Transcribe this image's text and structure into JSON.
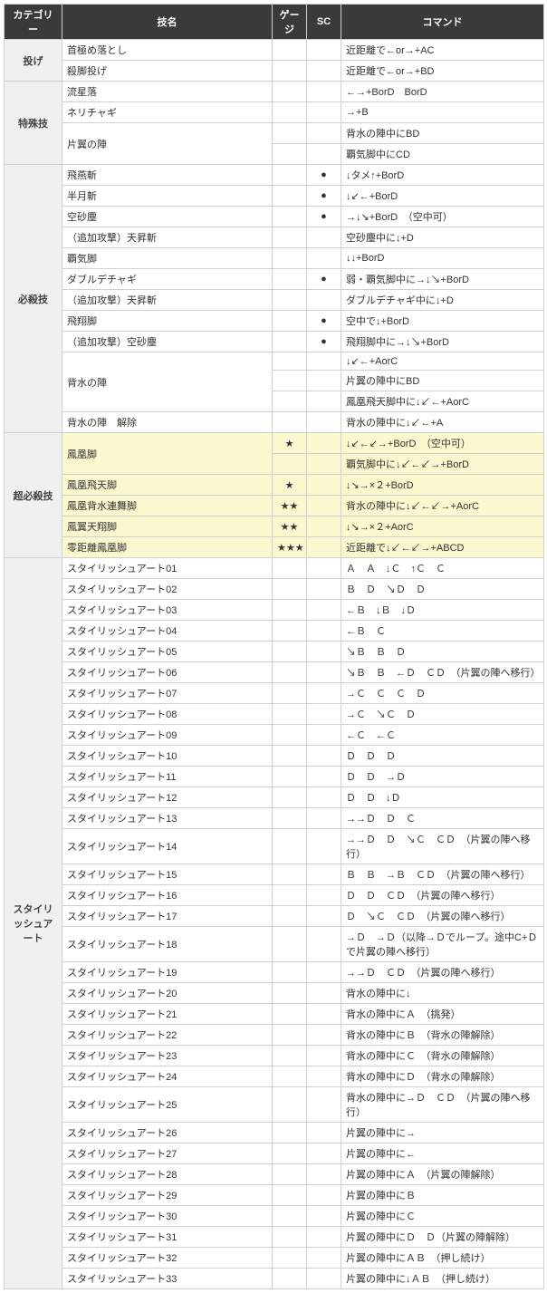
{
  "headers": {
    "category": "カテゴリー",
    "name": "技名",
    "gauge": "ゲージ",
    "sc": "SC",
    "command": "コマンド"
  },
  "rows": [
    {
      "cat": "投げ",
      "catSpan": 2,
      "name": "首極め落とし",
      "g": "",
      "s": "",
      "c": "近距離で←or→+AC"
    },
    {
      "name": "殺脚投げ",
      "g": "",
      "s": "",
      "c": "近距離で←or→+BD"
    },
    {
      "cat": "特殊技",
      "catSpan": 4,
      "name": "流星落",
      "g": "",
      "s": "",
      "c": "←→+BorD　BorD"
    },
    {
      "name": "ネリチャギ",
      "g": "",
      "s": "",
      "c": "→+B"
    },
    {
      "name": "片翼の陣",
      "rowSpan": 2,
      "g": "",
      "s": "",
      "c": "背水の陣中にBD"
    },
    {
      "g": "",
      "s": "",
      "c": "覇気脚中にCD"
    },
    {
      "cat": "必殺技",
      "catSpan": 13,
      "name": "飛燕斬",
      "g": "",
      "s": "●",
      "c": "↓タメ↑+BorD"
    },
    {
      "name": "半月斬",
      "g": "",
      "s": "●",
      "c": "↓↙←+BorD"
    },
    {
      "name": "空砂塵",
      "g": "",
      "s": "●",
      "c": "→↓↘+BorD　（空中可）"
    },
    {
      "name": "（追加攻撃）天昇斬",
      "g": "",
      "s": "",
      "c": "空砂塵中に↓+D"
    },
    {
      "name": "覇気脚",
      "g": "",
      "s": "",
      "c": "↓↓+BorD"
    },
    {
      "name": "ダブルデチャギ",
      "g": "",
      "s": "●",
      "c": "弱・覇気脚中に→↓↘+BorD"
    },
    {
      "name": "（追加攻撃）天昇斬",
      "g": "",
      "s": "",
      "c": "ダブルデチャギ中に↓+D"
    },
    {
      "name": "飛翔脚",
      "g": "",
      "s": "●",
      "c": "空中で↓+BorD"
    },
    {
      "name": "（追加攻撃）空砂塵",
      "g": "",
      "s": "●",
      "c": "飛翔脚中に→↓↘+BorD"
    },
    {
      "name": "背水の陣",
      "rowSpan": 3,
      "g": "",
      "s": "",
      "c": "↓↙←+AorC"
    },
    {
      "g": "",
      "s": "",
      "c": "片翼の陣中にBD"
    },
    {
      "g": "",
      "s": "",
      "c": "鳳凰飛天脚中に↓↙←+AorC"
    },
    {
      "name": "背水の陣　解除",
      "g": "",
      "s": "",
      "c": "背水の陣中に↓↙←+A"
    },
    {
      "cat": "超必殺技",
      "catSpan": 6,
      "hl": true,
      "name": "鳳凰脚",
      "rowSpan": 2,
      "g": "★",
      "s": "",
      "c": "↓↙←↙→+BorD　（空中可）"
    },
    {
      "hl": true,
      "g": "",
      "s": "",
      "c": "覇気脚中に↓↙←↙→+BorD"
    },
    {
      "hl": true,
      "name": "鳳凰飛天脚",
      "g": "★",
      "s": "",
      "c": "↓↘→×２+BorD"
    },
    {
      "hl": true,
      "name": "鳳凰背水連舞脚",
      "g": "★★",
      "s": "",
      "c": "背水の陣中に↓↙←↙→+AorC"
    },
    {
      "hl": true,
      "name": "鳳翼天翔脚",
      "g": "★★",
      "s": "",
      "c": "↓↘→×２+AorC"
    },
    {
      "hl": true,
      "name": "零距離鳳凰脚",
      "g": "★★★",
      "s": "",
      "c": "近距離で↓↙←↙→+ABCD"
    },
    {
      "cat": "スタイリッシュアート",
      "catSpan": 33,
      "name": "スタイリッシュアート01",
      "g": "",
      "s": "",
      "c": "Ａ　Ａ　↓Ｃ　↑Ｃ　Ｃ"
    },
    {
      "name": "スタイリッシュアート02",
      "g": "",
      "s": "",
      "c": "Ｂ　Ｄ　↘Ｄ　Ｄ"
    },
    {
      "name": "スタイリッシュアート03",
      "g": "",
      "s": "",
      "c": "←Ｂ　↓Ｂ　↓Ｄ"
    },
    {
      "name": "スタイリッシュアート04",
      "g": "",
      "s": "",
      "c": "←Ｂ　Ｃ"
    },
    {
      "name": "スタイリッシュアート05",
      "g": "",
      "s": "",
      "c": "↘Ｂ　Ｂ　Ｄ"
    },
    {
      "name": "スタイリッシュアート06",
      "g": "",
      "s": "",
      "c": "↘Ｂ　Ｂ　←Ｄ　ＣＤ　（片翼の陣へ移行）"
    },
    {
      "name": "スタイリッシュアート07",
      "g": "",
      "s": "",
      "c": "→Ｃ　Ｃ　Ｃ　Ｄ"
    },
    {
      "name": "スタイリッシュアート08",
      "g": "",
      "s": "",
      "c": "→Ｃ　↘Ｃ　Ｄ"
    },
    {
      "name": "スタイリッシュアート09",
      "g": "",
      "s": "",
      "c": "←Ｃ　←Ｃ"
    },
    {
      "name": "スタイリッシュアート10",
      "g": "",
      "s": "",
      "c": "Ｄ　Ｄ　Ｄ"
    },
    {
      "name": "スタイリッシュアート11",
      "g": "",
      "s": "",
      "c": "Ｄ　Ｄ　→Ｄ"
    },
    {
      "name": "スタイリッシュアート12",
      "g": "",
      "s": "",
      "c": "Ｄ　Ｄ　↓Ｄ"
    },
    {
      "name": "スタイリッシュアート13",
      "g": "",
      "s": "",
      "c": "→→Ｄ　Ｄ　Ｃ"
    },
    {
      "name": "スタイリッシュアート14",
      "g": "",
      "s": "",
      "c": "→→Ｄ　Ｄ　↘Ｃ　ＣＤ　（片翼の陣へ移行）"
    },
    {
      "name": "スタイリッシュアート15",
      "g": "",
      "s": "",
      "c": "Ｂ　Ｂ　→Ｂ　ＣＤ　（片翼の陣へ移行）"
    },
    {
      "name": "スタイリッシュアート16",
      "g": "",
      "s": "",
      "c": "Ｄ　Ｄ　ＣＤ　（片翼の陣へ移行）"
    },
    {
      "name": "スタイリッシュアート17",
      "g": "",
      "s": "",
      "c": "Ｄ　↘Ｃ　ＣＤ　（片翼の陣へ移行）"
    },
    {
      "name": "スタイリッシュアート18",
      "g": "",
      "s": "",
      "c": "→Ｄ　→Ｄ（以降→Ｄでループ。途中С+Ｄで片翼の陣へ移行）"
    },
    {
      "name": "スタイリッシュアート19",
      "g": "",
      "s": "",
      "c": "→→Ｄ　ＣＤ　（片翼の陣へ移行）"
    },
    {
      "name": "スタイリッシュアート20",
      "g": "",
      "s": "",
      "c": "背水の陣中に↓"
    },
    {
      "name": "スタイリッシュアート21",
      "g": "",
      "s": "",
      "c": "背水の陣中にＡ　（挑発）"
    },
    {
      "name": "スタイリッシュアート22",
      "g": "",
      "s": "",
      "c": "背水の陣中にＢ　（背水の陣解除）"
    },
    {
      "name": "スタイリッシュアート23",
      "g": "",
      "s": "",
      "c": "背水の陣中にＣ　（背水の陣解除）"
    },
    {
      "name": "スタイリッシュアート24",
      "g": "",
      "s": "",
      "c": "背水の陣中にＤ　（背水の陣解除）"
    },
    {
      "name": "スタイリッシュアート25",
      "g": "",
      "s": "",
      "c": "背水の陣中に→Ｄ　ＣＤ　（片翼の陣へ移行）"
    },
    {
      "name": "スタイリッシュアート26",
      "g": "",
      "s": "",
      "c": "片翼の陣中に→"
    },
    {
      "name": "スタイリッシュアート27",
      "g": "",
      "s": "",
      "c": "片翼の陣中に←"
    },
    {
      "name": "スタイリッシュアート28",
      "g": "",
      "s": "",
      "c": "片翼の陣中にＡ　（片翼の陣解除）"
    },
    {
      "name": "スタイリッシュアート29",
      "g": "",
      "s": "",
      "c": "片翼の陣中にＢ"
    },
    {
      "name": "スタイリッシュアート30",
      "g": "",
      "s": "",
      "c": "片翼の陣中にＣ"
    },
    {
      "name": "スタイリッシュアート31",
      "g": "",
      "s": "",
      "c": "片翼の陣中にＤ　Ｄ（片翼の陣解除）"
    },
    {
      "name": "スタイリッシュアート32",
      "g": "",
      "s": "",
      "c": "片翼の陣中にＡＢ　（押し続け）"
    },
    {
      "name": "スタイリッシュアート33",
      "g": "",
      "s": "",
      "c": "片翼の陣中に↓ＡＢ　（押し続け）"
    }
  ]
}
